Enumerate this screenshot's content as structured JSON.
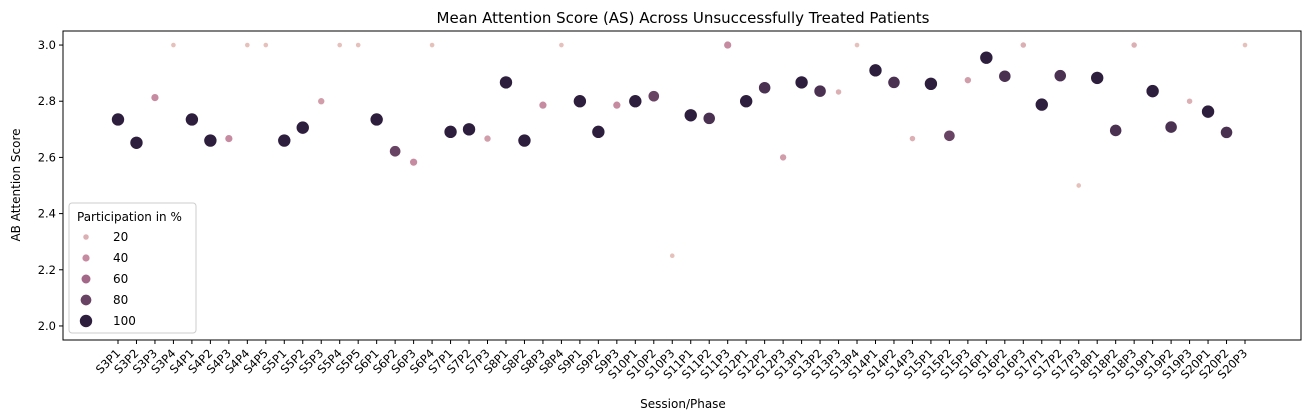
{
  "chart_data": {
    "type": "scatter",
    "title": "Mean Attention Score (AS) Across Unsuccessfully Treated Patients",
    "xlabel": "Session/Phase",
    "ylabel": "AB Attention Score",
    "ylim": [
      1.95,
      3.05
    ],
    "yticks": [
      "2.0",
      "2.2",
      "2.4",
      "2.6",
      "2.8",
      "3.0"
    ],
    "grid": false,
    "legend": {
      "title": "Participation in %",
      "placement": "lower-left",
      "entries": [
        {
          "label": "20",
          "value": 20
        },
        {
          "label": "40",
          "value": 40
        },
        {
          "label": "60",
          "value": 60
        },
        {
          "label": "80",
          "value": 80
        },
        {
          "label": "100",
          "value": 100
        }
      ]
    },
    "categories": [
      "S3P1",
      "S3P2",
      "S3P3",
      "S3P4",
      "S4P1",
      "S4P2",
      "S4P3",
      "S4P4",
      "S4P5",
      "S5P1",
      "S5P2",
      "S5P3",
      "S5P4",
      "S5P5",
      "S6P1",
      "S6P2",
      "S6P3",
      "S6P4",
      "S7P1",
      "S7P2",
      "S7P3",
      "S8P1",
      "S8P2",
      "S8P3",
      "S8P4",
      "S9P1",
      "S9P2",
      "S9P3",
      "S10P1",
      "S10P2",
      "S10P3",
      "S11P1",
      "S11P2",
      "S11P3",
      "S12P1",
      "S12P2",
      "S12P3",
      "S13P1",
      "S13P2",
      "S13P3",
      "S13P4",
      "S14P1",
      "S14P2",
      "S14P3",
      "S15P1",
      "S15P2",
      "S15P3",
      "S16P1",
      "S16P2",
      "S16P3",
      "S17P1",
      "S17P2",
      "S17P3",
      "S18P1",
      "S18P2",
      "S18P3",
      "S19P1",
      "S19P2",
      "S19P3",
      "S20P1",
      "S20P2",
      "S20P3"
    ],
    "values": [
      2.735,
      2.652,
      2.813,
      3.0,
      2.735,
      2.66,
      2.667,
      3.0,
      3.0,
      2.66,
      2.706,
      2.8,
      3.0,
      3.0,
      2.735,
      2.622,
      2.583,
      3.0,
      2.691,
      2.7,
      2.667,
      2.867,
      2.66,
      2.786,
      3.0,
      2.8,
      2.691,
      2.786,
      2.8,
      2.818,
      2.25,
      2.75,
      2.739,
      3.0,
      2.8,
      2.848,
      2.6,
      2.867,
      2.836,
      2.833,
      3.0,
      2.91,
      2.867,
      2.667,
      2.862,
      2.677,
      2.875,
      2.955,
      2.889,
      3.0,
      2.788,
      2.891,
      2.5,
      2.883,
      2.696,
      3.0,
      2.836,
      2.708,
      2.8,
      2.763,
      2.689,
      3.0
    ],
    "participation": [
      100,
      100,
      40,
      10,
      100,
      100,
      40,
      10,
      10,
      100,
      100,
      30,
      10,
      10,
      100,
      80,
      40,
      10,
      100,
      100,
      30,
      100,
      100,
      40,
      10,
      100,
      100,
      40,
      100,
      80,
      10,
      100,
      90,
      40,
      100,
      90,
      30,
      100,
      90,
      20,
      10,
      100,
      90,
      20,
      100,
      80,
      30,
      100,
      90,
      20,
      100,
      90,
      10,
      100,
      90,
      20,
      100,
      90,
      20,
      100,
      90,
      10
    ],
    "colors": {
      "low": "#ebcac0",
      "mid": "#b97596",
      "high": "#2d1e3e"
    }
  }
}
